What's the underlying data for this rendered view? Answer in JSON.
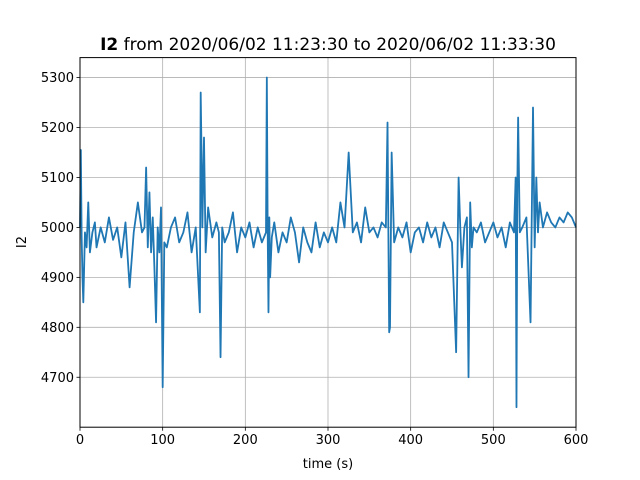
{
  "chart_data": {
    "type": "line",
    "title_bold": "I2",
    "title_rest": " from 2020/06/02 11:23:30 to 2020/06/02 11:33:30",
    "xlabel": "time (s)",
    "ylabel": "I2",
    "xlim": [
      0,
      600
    ],
    "ylim": [
      4600,
      5340
    ],
    "xticks": [
      0,
      100,
      200,
      300,
      400,
      500,
      600
    ],
    "yticks": [
      4700,
      4800,
      4900,
      5000,
      5100,
      5200,
      5300
    ],
    "grid": true,
    "series": [
      {
        "color": "#1f77b4",
        "x": [
          0,
          1,
          2,
          3,
          4,
          6,
          8,
          10,
          12,
          15,
          18,
          20,
          25,
          30,
          35,
          40,
          45,
          50,
          55,
          60,
          65,
          70,
          75,
          78,
          80,
          82,
          84,
          86,
          88,
          90,
          92,
          94,
          96,
          98,
          100,
          102,
          105,
          110,
          115,
          120,
          125,
          130,
          135,
          140,
          145,
          146,
          147,
          148,
          150,
          152,
          155,
          160,
          165,
          168,
          170,
          172,
          175,
          180,
          185,
          190,
          195,
          200,
          205,
          210,
          215,
          220,
          225,
          226,
          227,
          228,
          229,
          230,
          232,
          235,
          240,
          245,
          250,
          255,
          260,
          265,
          270,
          275,
          280,
          285,
          290,
          295,
          300,
          305,
          310,
          315,
          320,
          325,
          330,
          335,
          340,
          345,
          350,
          355,
          360,
          365,
          370,
          372,
          374,
          375,
          377,
          380,
          385,
          390,
          395,
          400,
          405,
          410,
          415,
          420,
          425,
          430,
          435,
          440,
          445,
          450,
          455,
          458,
          460,
          462,
          465,
          468,
          470,
          472,
          474,
          476,
          480,
          485,
          490,
          495,
          500,
          505,
          510,
          515,
          520,
          525,
          527,
          528,
          529,
          530,
          532,
          535,
          540,
          545,
          548,
          550,
          552,
          554,
          556,
          560,
          565,
          570,
          575,
          580,
          585,
          590,
          595,
          600
        ],
        "y": [
          5000,
          5155,
          4980,
          4900,
          4850,
          4990,
          4960,
          5050,
          4950,
          4990,
          5010,
          4960,
          5000,
          4970,
          5020,
          4975,
          5000,
          4940,
          5010,
          4880,
          4990,
          5050,
          4990,
          5000,
          5120,
          4960,
          5070,
          4950,
          5020,
          4920,
          4810,
          5000,
          4950,
          5040,
          4680,
          4970,
          4960,
          5000,
          5020,
          4970,
          4990,
          5030,
          4950,
          5000,
          4830,
          5270,
          5150,
          5000,
          5180,
          4950,
          5040,
          4980,
          5010,
          4990,
          4740,
          5000,
          4970,
          4990,
          5030,
          4950,
          5000,
          4980,
          5010,
          4960,
          5000,
          4970,
          4990,
          5300,
          5000,
          4830,
          5020,
          4900,
          4980,
          5010,
          4950,
          4990,
          4970,
          5020,
          4990,
          4930,
          5000,
          4970,
          4950,
          5010,
          4960,
          4990,
          4970,
          5000,
          4970,
          5050,
          5000,
          5150,
          4990,
          5010,
          4970,
          5040,
          4990,
          5000,
          4980,
          5010,
          5000,
          5210,
          4790,
          4800,
          5150,
          4970,
          5000,
          4980,
          5010,
          4950,
          4990,
          5000,
          4970,
          5010,
          4980,
          5000,
          4960,
          5010,
          4990,
          4970,
          4750,
          5100,
          5000,
          4920,
          5000,
          5020,
          4700,
          5050,
          4960,
          5000,
          4990,
          5010,
          4970,
          4990,
          5010,
          4980,
          5000,
          4960,
          5010,
          4990,
          5100,
          4640,
          5080,
          5220,
          4990,
          5000,
          5020,
          4810,
          5240,
          4960,
          5100,
          4990,
          5050,
          5000,
          5030,
          5010,
          5000,
          5020,
          5010,
          5030,
          5020,
          5000
        ]
      }
    ]
  }
}
